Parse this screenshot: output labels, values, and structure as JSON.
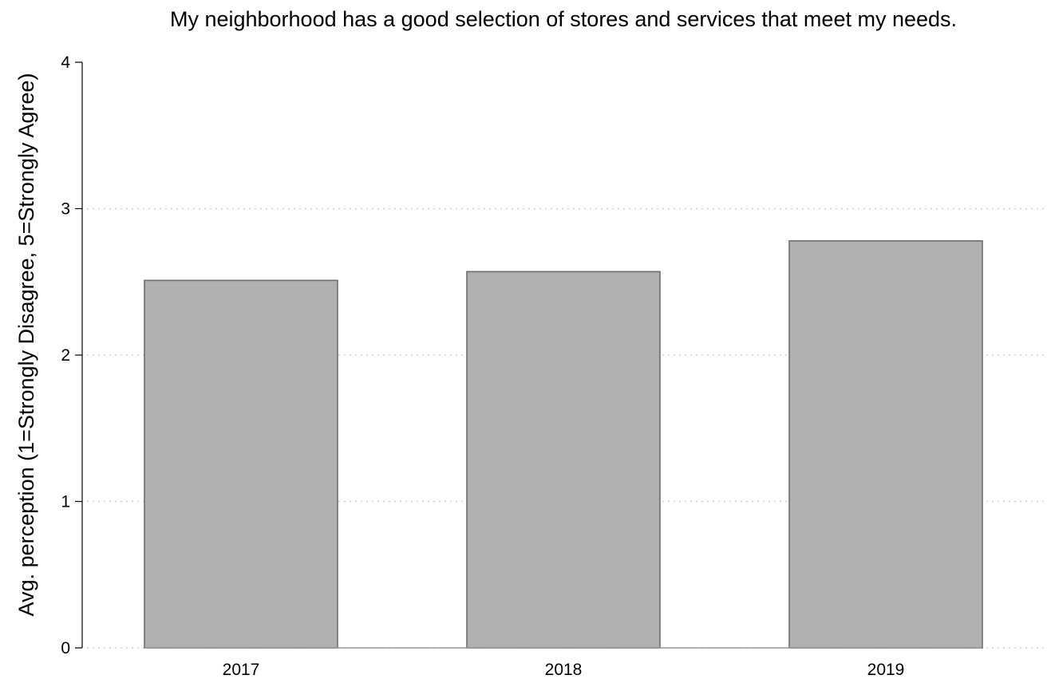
{
  "chart_data": {
    "type": "bar",
    "title": "My neighborhood has a good selection of stores and services that meet my needs.",
    "xlabel": "",
    "ylabel": "Avg. perception (1=Strongly Disagree, 5=Strongly Agree)",
    "categories": [
      "2017",
      "2018",
      "2019"
    ],
    "values": [
      2.51,
      2.57,
      2.78
    ],
    "ylim": [
      0,
      4
    ],
    "yticks": [
      "0",
      "1",
      "2",
      "3",
      "4"
    ],
    "grid": true,
    "legend": "none",
    "colors": {
      "bar_fill": "#b0b0b0",
      "bar_stroke": "#6e6e6e",
      "grid": "#d0d0d0",
      "axis": "#000000"
    }
  }
}
